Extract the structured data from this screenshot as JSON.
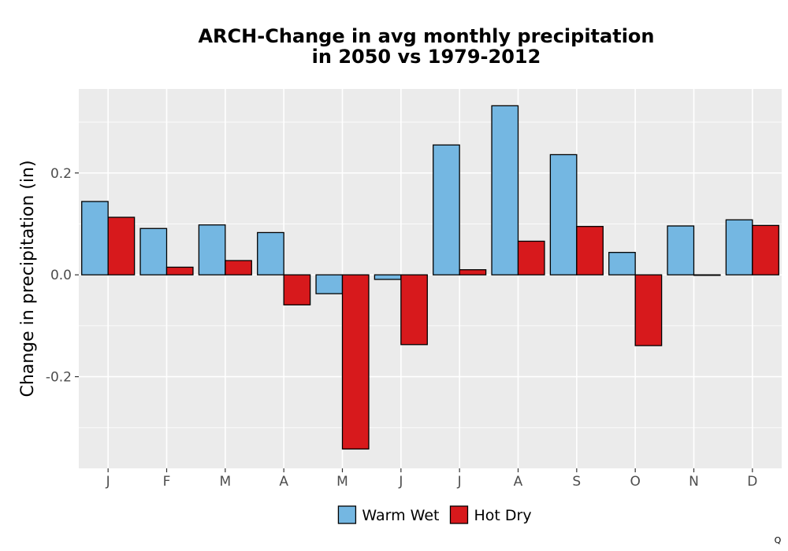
{
  "chart_data": {
    "type": "bar",
    "title_lines": [
      "ARCH-Change in avg monthly precipitation",
      "in 2050 vs 1979-2012"
    ],
    "xlabel": "",
    "ylabel": "Change in precipitation (in)",
    "categories": [
      "J",
      "F",
      "M",
      "A",
      "M",
      "J",
      "J",
      "A",
      "S",
      "O",
      "N",
      "D"
    ],
    "series": [
      {
        "name": "Warm Wet",
        "color": "#74b7e2",
        "values": [
          0.144,
          0.091,
          0.098,
          0.083,
          -0.037,
          -0.009,
          0.255,
          0.332,
          0.236,
          0.044,
          0.096,
          0.108
        ]
      },
      {
        "name": "Hot Dry",
        "color": "#d7191c",
        "values": [
          0.113,
          0.015,
          0.028,
          -0.059,
          -0.342,
          -0.137,
          0.01,
          0.066,
          0.095,
          -0.139,
          -0.001,
          0.097
        ]
      }
    ],
    "ylim": [
      -0.38,
      0.365
    ],
    "yticks": [
      -0.2,
      0.0,
      0.2
    ],
    "ytick_labels": [
      "-0.2",
      "0.0",
      "0.2"
    ],
    "grid": true,
    "legend_position": "bottom",
    "panel_background": "#ebebeb"
  },
  "corner_mark": "Q"
}
